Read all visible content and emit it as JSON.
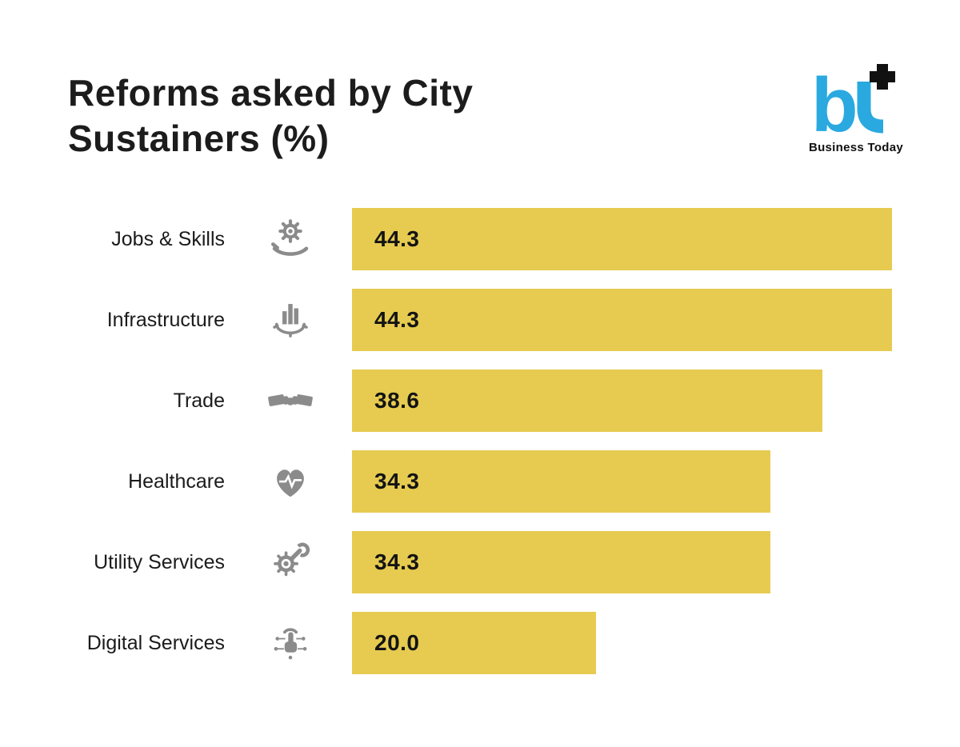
{
  "title": {
    "line1": "Reforms asked by City",
    "line2": "Sustainers (%)"
  },
  "logo": {
    "brand": "bt",
    "caption": "Business Today",
    "brand_color": "#2aa9e0",
    "accent_color": "#111111"
  },
  "chart_data": {
    "type": "bar",
    "orientation": "horizontal",
    "title": "Reforms asked by City Sustainers (%)",
    "categories": [
      "Jobs & Skills",
      "Infrastructure",
      "Trade",
      "Healthcare",
      "Utility Services",
      "Digital Services"
    ],
    "values": [
      44.3,
      44.3,
      38.6,
      34.3,
      34.3,
      20.0
    ],
    "value_labels": [
      "44.3",
      "44.3",
      "38.6",
      "34.3",
      "34.3",
      "20.0"
    ],
    "icons": [
      "gear-hand-icon",
      "city-infrastructure-icon",
      "handshake-icon",
      "heart-pulse-icon",
      "gear-wrench-icon",
      "digital-touch-icon"
    ],
    "bar_color": "#e6cb50",
    "icon_color": "#8b8b8b",
    "max_value": 44.3,
    "xlim": [
      0,
      44.3
    ],
    "grid": false,
    "legend": false,
    "value_label_position": "inside-left"
  }
}
